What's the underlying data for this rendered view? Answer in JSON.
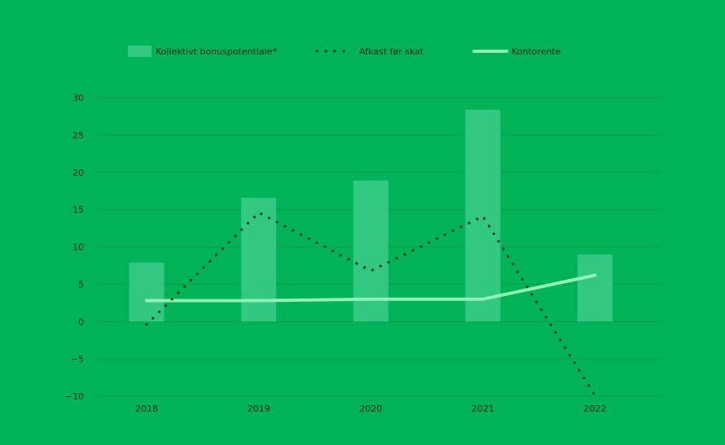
{
  "colors": {
    "background": "#00b258",
    "bar": "#33c882",
    "gridline": "#089e4a",
    "afkast_line": "#0e3b22",
    "kontorente_line": "#8ff2b5",
    "text": "#0a2a17"
  },
  "chart_data": {
    "type": "bar",
    "categories": [
      "2018",
      "2019",
      "2020",
      "2021",
      "2022"
    ],
    "series": [
      {
        "name": "Kollektivt bonuspotentiale*",
        "type": "bar",
        "values": [
          7.9,
          16.6,
          18.9,
          28.4,
          9.0
        ]
      },
      {
        "name": "Afkast før skat",
        "type": "line",
        "style": "dotted",
        "values": [
          -0.4,
          14.6,
          6.8,
          14.1,
          -9.9
        ]
      },
      {
        "name": "Kontorente",
        "type": "line",
        "style": "solid",
        "values": [
          2.8,
          2.8,
          3.0,
          3.0,
          6.2
        ]
      }
    ],
    "ylim": [
      -10,
      30
    ],
    "yticks": [
      30,
      25,
      20,
      15,
      10,
      5,
      0,
      -5,
      -10
    ],
    "ytick_labels": [
      "30",
      "25",
      "20",
      "15",
      "10",
      "5",
      "0",
      "−5",
      "−10"
    ],
    "grid": true,
    "legend_position": "top"
  }
}
